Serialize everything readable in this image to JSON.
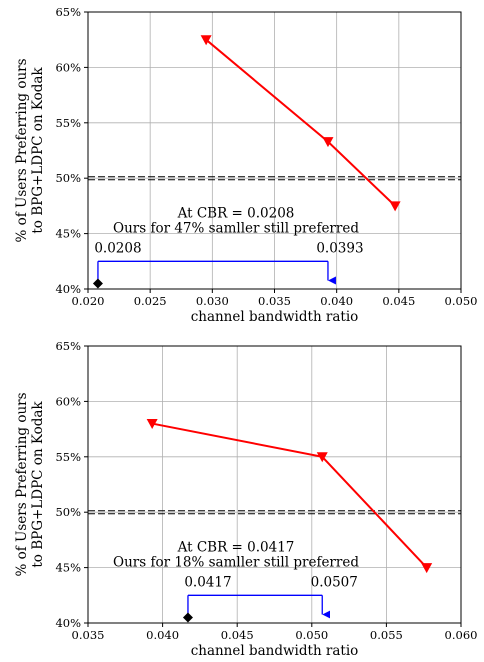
{
  "chart_data": [
    {
      "type": "line",
      "xlabel": "channel bandwidth ratio",
      "ylabel_lines": [
        "% of Users Preferring ours",
        "to BPG+LDPC on Kodak"
      ],
      "xlim": [
        0.02,
        0.05
      ],
      "ylim": [
        40,
        65
      ],
      "xticks": [
        0.02,
        0.025,
        0.03,
        0.035,
        0.04,
        0.045,
        0.05
      ],
      "xtick_labels": [
        "0.020",
        "0.025",
        "0.030",
        "0.035",
        "0.040",
        "0.045",
        "0.050"
      ],
      "yticks": [
        40,
        45,
        50,
        55,
        60,
        65
      ],
      "ytick_labels": [
        "40%",
        "45%",
        "50%",
        "55%",
        "60%",
        "65%"
      ],
      "grid": true,
      "reference_line_y": 50,
      "series": [
        {
          "color": "#ff0000",
          "marker": "triangle-down",
          "x": [
            0.0295,
            0.0393,
            0.0447
          ],
          "y": [
            62.5,
            53.3,
            47.5
          ]
        }
      ],
      "baseline_point": {
        "x": 0.0208,
        "y": 40.5,
        "color": "#000000",
        "marker": "diamond"
      },
      "bracket": {
        "x_start": 0.0208,
        "x_end": 0.0393,
        "y_top": 42.5,
        "y_bottom": 40.5,
        "color": "#0000ff"
      },
      "annotations": {
        "line1": "At CBR = 0.0208",
        "line2": "Ours for 47% samller still preferred",
        "left_value": "0.0208",
        "right_value": "0.0393"
      }
    },
    {
      "type": "line",
      "xlabel": "channel bandwidth ratio",
      "ylabel_lines": [
        "% of Users Preferring ours",
        "to BPG+LDPC on Kodak"
      ],
      "xlim": [
        0.035,
        0.06
      ],
      "ylim": [
        40,
        65
      ],
      "xticks": [
        0.035,
        0.04,
        0.045,
        0.05,
        0.055,
        0.06
      ],
      "xtick_labels": [
        "0.035",
        "0.040",
        "0.045",
        "0.050",
        "0.055",
        "0.060"
      ],
      "yticks": [
        40,
        45,
        50,
        55,
        60,
        65
      ],
      "ytick_labels": [
        "40%",
        "45%",
        "50%",
        "55%",
        "60%",
        "65%"
      ],
      "grid": true,
      "reference_line_y": 50,
      "series": [
        {
          "color": "#ff0000",
          "marker": "triangle-down",
          "x": [
            0.0393,
            0.0507,
            0.0577
          ],
          "y": [
            58,
            55,
            45
          ]
        }
      ],
      "baseline_point": {
        "x": 0.0417,
        "y": 40.5,
        "color": "#000000",
        "marker": "diamond"
      },
      "bracket": {
        "x_start": 0.0417,
        "x_end": 0.0507,
        "y_top": 42.5,
        "y_bottom": 40.5,
        "color": "#0000ff"
      },
      "annotations": {
        "line1": "At CBR = 0.0417",
        "line2": "Ours for 18% samller still preferred",
        "left_value": "0.0417",
        "right_value": "0.0507"
      }
    }
  ]
}
